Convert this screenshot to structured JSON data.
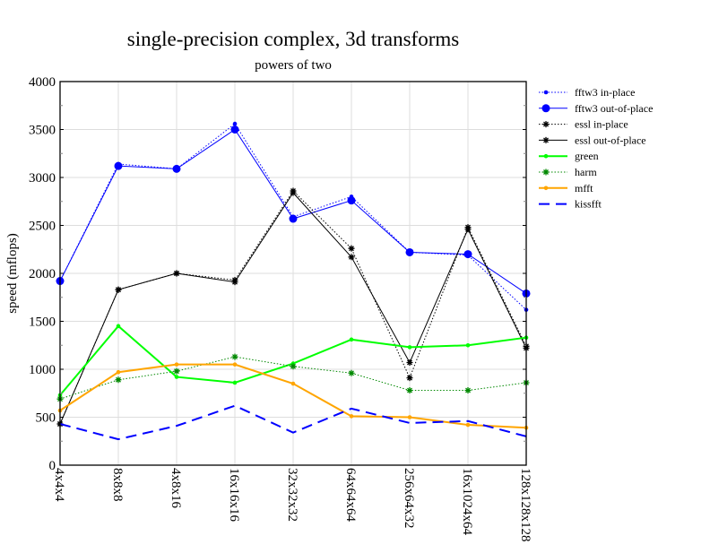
{
  "chart_data": {
    "type": "line",
    "title": "single-precision complex, 3d transforms",
    "subtitle": "powers of two",
    "xlabel": "",
    "ylabel": "speed (mflops)",
    "ylim": [
      0,
      4000
    ],
    "yticks": [
      "0",
      "500",
      "1000",
      "1500",
      "2000",
      "2500",
      "3000",
      "3500",
      "4000"
    ],
    "grid": true,
    "legend_position": "right, outside",
    "categories": [
      "4x4x4",
      "8x8x8",
      "4x8x16",
      "16x16x16",
      "32x32x32",
      "64x64x64",
      "256x64x32",
      "16x1024x64",
      "128x128x128"
    ],
    "series": [
      {
        "name": "fftw3 in-place",
        "color": "#0000ff",
        "dash": "dotted",
        "marker": "small-dot",
        "values": [
          1920,
          3140,
          3090,
          3560,
          2590,
          2800,
          2220,
          2190,
          1620
        ]
      },
      {
        "name": "fftw3 out-of-place",
        "color": "#0000ff",
        "dash": "solid",
        "marker": "dot",
        "values": [
          1920,
          3120,
          3090,
          3500,
          2570,
          2760,
          2220,
          2200,
          1790
        ]
      },
      {
        "name": "essl in-place",
        "color": "#000000",
        "dash": "dotted",
        "marker": "star",
        "values": [
          430,
          1830,
          2000,
          1930,
          2860,
          2260,
          910,
          2480,
          1240
        ]
      },
      {
        "name": "essl out-of-place",
        "color": "#000000",
        "dash": "solid",
        "marker": "star",
        "values": [
          430,
          1830,
          2000,
          1910,
          2840,
          2170,
          1070,
          2460,
          1220
        ]
      },
      {
        "name": "green",
        "color": "#00ff00",
        "dash": "solid",
        "marker": "small-dot",
        "values": [
          730,
          1450,
          920,
          860,
          1060,
          1310,
          1230,
          1250,
          1330
        ]
      },
      {
        "name": "harm",
        "color": "#008800",
        "dash": "dotted",
        "marker": "star",
        "values": [
          690,
          890,
          980,
          1130,
          1030,
          960,
          780,
          780,
          860
        ]
      },
      {
        "name": "mfft",
        "color": "#ffa500",
        "dash": "solid",
        "marker": "small-dot",
        "values": [
          570,
          970,
          1050,
          1050,
          850,
          510,
          500,
          420,
          390
        ]
      },
      {
        "name": "kissfft",
        "color": "#0000ff",
        "dash": "dashed",
        "marker": "none",
        "values": [
          430,
          270,
          410,
          620,
          340,
          590,
          440,
          460,
          300
        ]
      }
    ]
  }
}
